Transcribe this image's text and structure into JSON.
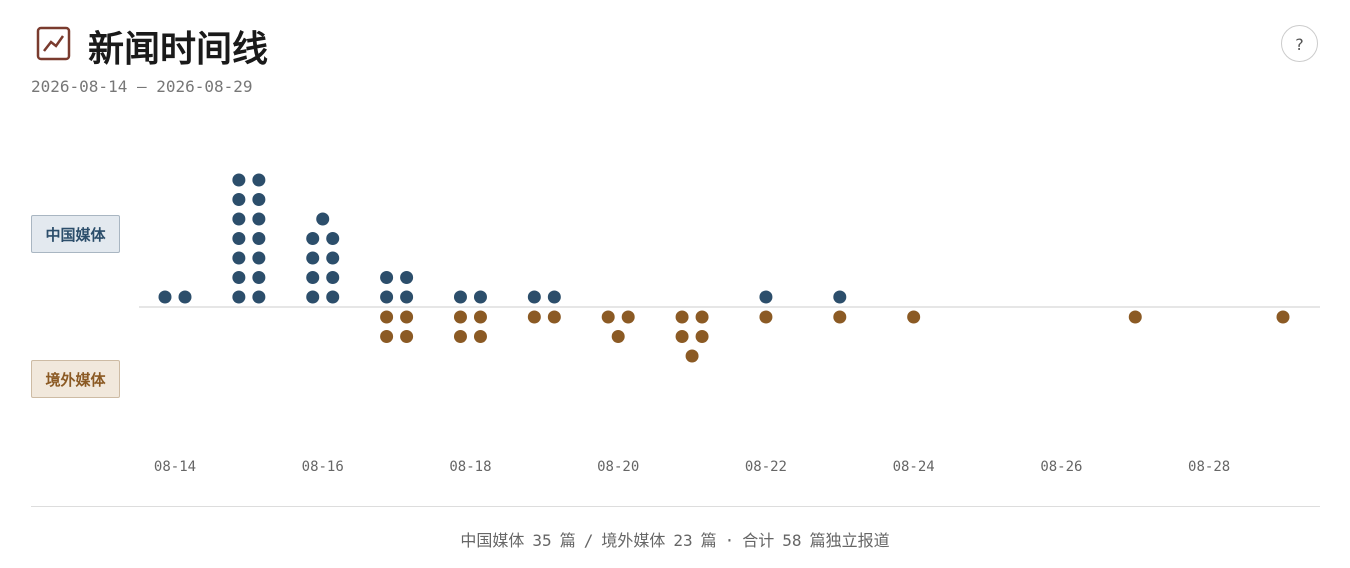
{
  "header": {
    "title": "新闻时间线",
    "subtitle": "2026-08-14 – 2026-08-29",
    "help": "?"
  },
  "chart_data": {
    "type": "dot-stack",
    "x": [
      "08-14",
      "08-15",
      "08-16",
      "08-17",
      "08-18",
      "08-19",
      "08-20",
      "08-21",
      "08-22",
      "08-23",
      "08-24",
      "08-27",
      "08-29"
    ],
    "xlim": [
      "08-14",
      "08-29"
    ],
    "xticks": [
      "08-14",
      "08-16",
      "08-18",
      "08-20",
      "08-22",
      "08-24",
      "08-26",
      "08-28"
    ],
    "series": [
      {
        "name": "中国媒体",
        "color": "#2c4e6b",
        "values": [
          2,
          14,
          9,
          4,
          2,
          2,
          0,
          0,
          1,
          1,
          0,
          0,
          0
        ]
      },
      {
        "name": "境外媒体",
        "color": "#8b5a24",
        "values": [
          0,
          0,
          0,
          4,
          4,
          2,
          3,
          5,
          1,
          1,
          1,
          1,
          1
        ]
      }
    ]
  },
  "footer": [
    "中国媒体",
    35,
    "篇",
    "/",
    "境外媒体",
    23,
    "篇",
    "·",
    "合计",
    58,
    "篇独立报道"
  ]
}
